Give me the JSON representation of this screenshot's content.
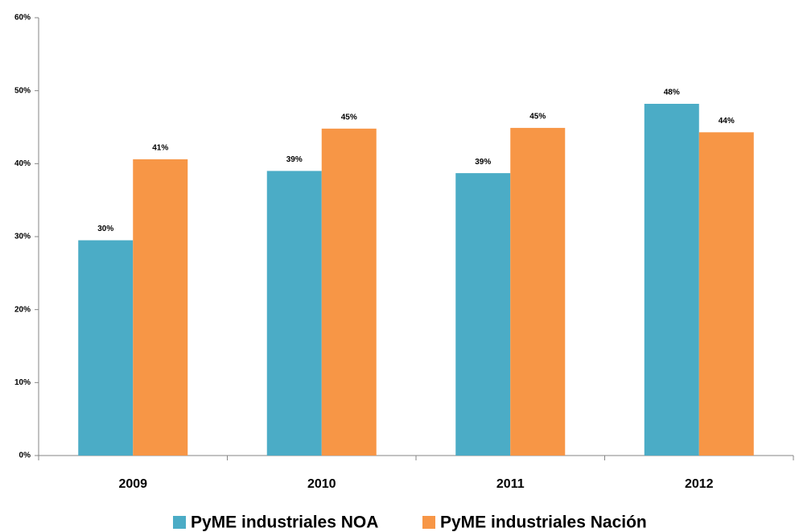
{
  "chart_data": {
    "type": "bar",
    "categories": [
      "2009",
      "2010",
      "2011",
      "2012"
    ],
    "series": [
      {
        "name": "PyME industriales NOA",
        "color": "#4bacc6",
        "values": [
          29.5,
          39.0,
          38.7,
          48.2
        ],
        "value_labels": [
          "30%",
          "39%",
          "39%",
          "48%"
        ]
      },
      {
        "name": "PyME industriales Nación",
        "color": "#f79646",
        "values": [
          40.6,
          44.8,
          44.9,
          44.3
        ],
        "value_labels": [
          "41%",
          "45%",
          "45%",
          "44%"
        ]
      }
    ],
    "ylim": [
      0,
      60
    ],
    "yticks": [
      {
        "value": 0,
        "label": "0%"
      },
      {
        "value": 10,
        "label": "10%"
      },
      {
        "value": 20,
        "label": "20%"
      },
      {
        "value": 30,
        "label": "30%"
      },
      {
        "value": 40,
        "label": "40%"
      },
      {
        "value": 50,
        "label": "50%"
      },
      {
        "value": 60,
        "label": "60%"
      }
    ],
    "legend": "bottom"
  }
}
